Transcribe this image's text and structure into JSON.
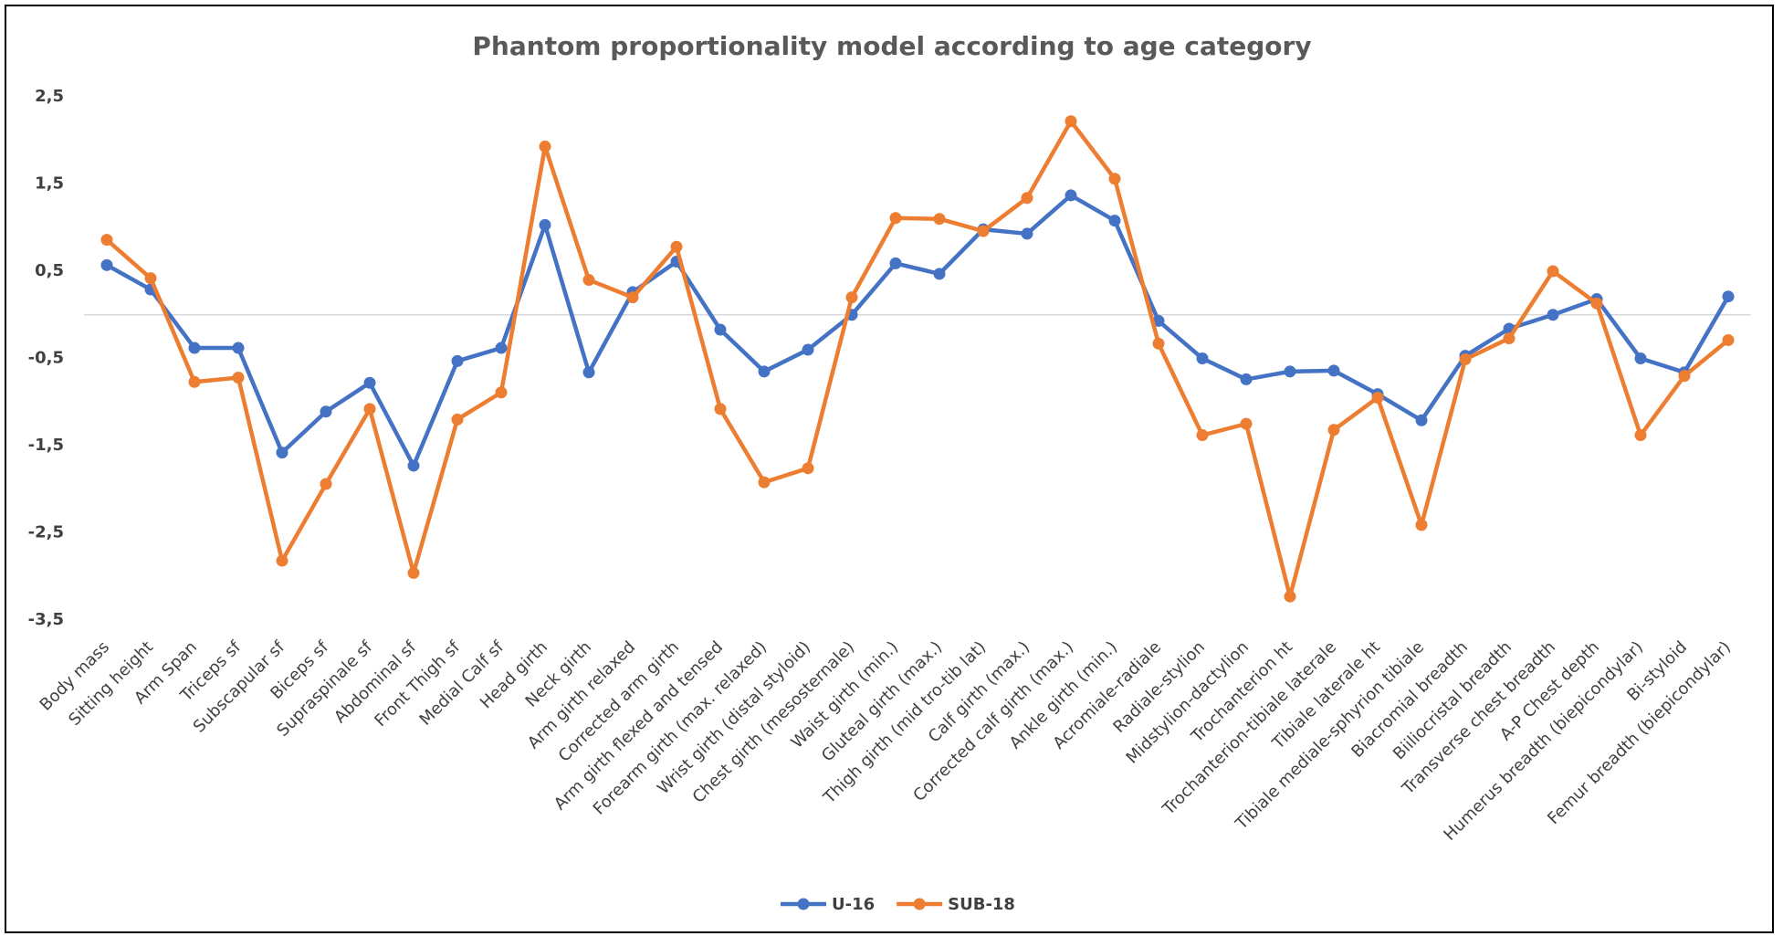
{
  "chart_data": {
    "type": "line",
    "title": "Phantom proportionality model according to age category",
    "categories": [
      "Body mass",
      "Sitting height",
      "Arm Span",
      "Triceps sf",
      "Subscapular sf",
      "Biceps sf",
      "Supraspinale sf",
      "Abdominal sf",
      "Front Thigh sf",
      "Medial Calf sf",
      "Head girth",
      "Neck girth",
      "Arm girth relaxed",
      "Corrected arm girth",
      "Arm girth flexed and tensed",
      "Forearm girth (max. relaxed)",
      "Wrist girth (distal styloid)",
      "Chest girth (mesosternale)",
      "Waist girth (min.)",
      "Gluteal girth (max.)",
      "Thigh girth (mid tro-tib lat)",
      "Calf girth (max.)",
      "Corrected calf girth (max.)",
      "Ankle girth (min.)",
      "Acromiale-radiale",
      "Radiale-stylion",
      "Midstylion-dactylion",
      "Trochanterion ht",
      "Trochanterion-tibiale laterale",
      "Tibiale laterale ht",
      "Tibiale mediale-sphyrion tibiale",
      "Biacromial breadth",
      "Biiliocristal breadth",
      "Transverse chest breadth",
      "A-P Chest depth",
      "Humerus breadth (biepicondylar)",
      "Bi-styloid",
      "Femur breadth (biepicondylar)"
    ],
    "series": [
      {
        "name": "U-16",
        "color": "#4472c4",
        "values": [
          0.57,
          0.29,
          -0.38,
          -0.38,
          -1.58,
          -1.11,
          -0.78,
          -1.73,
          -0.53,
          -0.38,
          1.03,
          -0.66,
          0.26,
          0.61,
          -0.17,
          -0.65,
          -0.4,
          0.0,
          0.59,
          0.47,
          0.98,
          0.93,
          1.37,
          1.08,
          -0.07,
          -0.5,
          -0.74,
          -0.65,
          -0.64,
          -0.91,
          -1.21,
          -0.47,
          -0.16,
          0.0,
          0.18,
          -0.5,
          -0.66,
          0.21
        ]
      },
      {
        "name": "SUB-18",
        "color": "#ed7d31",
        "values": [
          0.86,
          0.42,
          -0.77,
          -0.72,
          -2.82,
          -1.94,
          -1.08,
          -2.96,
          -1.2,
          -0.89,
          1.93,
          0.4,
          0.2,
          0.78,
          -1.08,
          -1.92,
          -1.76,
          0.2,
          1.11,
          1.1,
          0.96,
          1.34,
          2.22,
          1.56,
          -0.33,
          -1.38,
          -1.25,
          -3.23,
          -1.32,
          -0.95,
          -2.41,
          -0.51,
          -0.27,
          0.5,
          0.13,
          -1.38,
          -0.7,
          -0.29
        ]
      }
    ],
    "ylim": [
      -3.5,
      2.5
    ],
    "yticks": [
      {
        "value": -3.5,
        "label": "-3,5"
      },
      {
        "value": -2.5,
        "label": "-2,5"
      },
      {
        "value": -1.5,
        "label": "-1,5"
      },
      {
        "value": -0.5,
        "label": "-0,5"
      },
      {
        "value": 0.5,
        "label": "0,5"
      },
      {
        "value": 1.5,
        "label": "1,5"
      },
      {
        "value": 2.5,
        "label": "2,5"
      }
    ],
    "grid": false,
    "legend": "bottom"
  }
}
